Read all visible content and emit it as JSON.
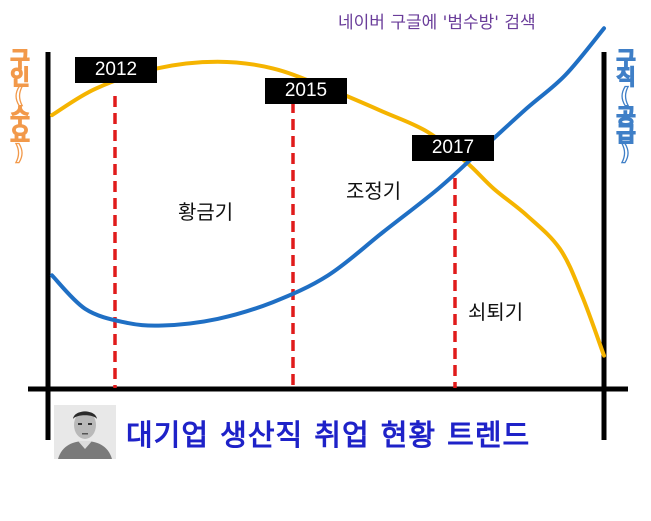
{
  "header": {
    "search_note": "네이버 구글에 '범수방' 검색"
  },
  "chart_data": {
    "type": "line",
    "title": "대기업 생산직 취업 현황 트렌드",
    "ylabel_left": "구인(수요)",
    "ylabel_right": "구직(공급)",
    "x_markers": [
      "2012",
      "2015",
      "2017"
    ],
    "phase_labels": [
      "황금기",
      "조정기",
      "쇠퇴기"
    ],
    "series": [
      {
        "name": "구인(수요)",
        "color": "#f5b400",
        "values": [
          [
            0.0,
            0.82
          ],
          [
            0.08,
            0.9
          ],
          [
            0.19,
            0.96
          ],
          [
            0.3,
            0.98
          ],
          [
            0.4,
            0.96
          ],
          [
            0.5,
            0.9
          ],
          [
            0.6,
            0.83
          ],
          [
            0.68,
            0.77
          ],
          [
            0.75,
            0.68
          ],
          [
            0.8,
            0.6
          ],
          [
            0.86,
            0.52
          ],
          [
            0.92,
            0.42
          ],
          [
            0.96,
            0.28
          ],
          [
            1.0,
            0.1
          ]
        ]
      },
      {
        "name": "구직(공급)",
        "color": "#1f6fc4",
        "values": [
          [
            0.0,
            0.34
          ],
          [
            0.06,
            0.24
          ],
          [
            0.13,
            0.2
          ],
          [
            0.2,
            0.19
          ],
          [
            0.3,
            0.21
          ],
          [
            0.4,
            0.26
          ],
          [
            0.5,
            0.34
          ],
          [
            0.6,
            0.47
          ],
          [
            0.7,
            0.6
          ],
          [
            0.78,
            0.72
          ],
          [
            0.86,
            0.84
          ],
          [
            0.93,
            0.94
          ],
          [
            1.0,
            1.08
          ]
        ]
      }
    ],
    "grid": false,
    "legend": "none"
  },
  "footer": {
    "title": "대기업 생산직 취업 현황 트렌드"
  }
}
